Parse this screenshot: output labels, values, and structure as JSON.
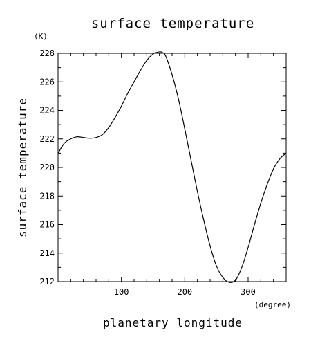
{
  "chart_data": {
    "type": "line",
    "title": "surface temperature",
    "xlabel": "planetary longitude",
    "ylabel": "surface temperature",
    "x_unit": "(degree)",
    "y_unit": "(K)",
    "xlim": [
      0,
      360
    ],
    "ylim": [
      212,
      228
    ],
    "x_ticks": [
      100,
      200,
      300
    ],
    "x_tick_labels": [
      "100",
      "200",
      "300"
    ],
    "y_ticks": [
      212,
      214,
      216,
      218,
      220,
      222,
      224,
      226,
      228
    ],
    "y_tick_labels": [
      "212",
      "214",
      "216",
      "218",
      "220",
      "222",
      "224",
      "226",
      "228"
    ],
    "grid": false,
    "series": [
      {
        "x": [
          0,
          10,
          20,
          30,
          40,
          50,
          60,
          70,
          80,
          90,
          100,
          110,
          120,
          130,
          140,
          150,
          160,
          165,
          170,
          180,
          190,
          200,
          210,
          220,
          230,
          240,
          250,
          260,
          270,
          280,
          290,
          300,
          310,
          320,
          330,
          340,
          350,
          360
        ],
        "y": [
          221.0,
          221.7,
          222.0,
          222.15,
          222.1,
          222.05,
          222.1,
          222.3,
          222.8,
          223.5,
          224.3,
          225.2,
          226.0,
          226.8,
          227.5,
          227.95,
          228.1,
          228.05,
          227.8,
          226.5,
          224.8,
          222.7,
          220.5,
          218.3,
          216.3,
          214.5,
          213.1,
          212.3,
          211.95,
          212.1,
          213.0,
          214.4,
          216.0,
          217.5,
          218.8,
          219.9,
          220.6,
          221.0
        ]
      }
    ]
  }
}
